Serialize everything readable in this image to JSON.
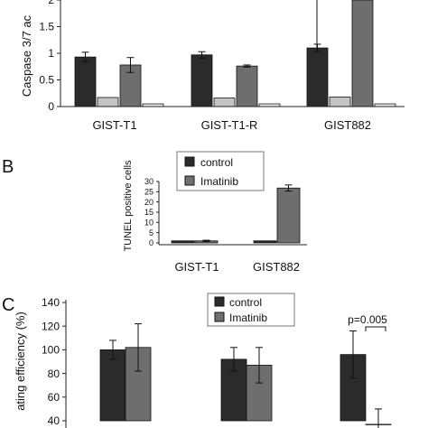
{
  "chart_data": [
    {
      "panel": "",
      "type": "bar",
      "ylabel": "Caspase 3/7 ac",
      "xlabel": "",
      "ylim": [
        0,
        2.25
      ],
      "yticks": [
        "0",
        "0.5",
        "1",
        "1.5",
        "2"
      ],
      "yticks_values": [
        0,
        0.5,
        1,
        1.5,
        2
      ],
      "categories": [
        "GIST-T1",
        "GIST-T1-R",
        "GIST882"
      ],
      "series": [
        {
          "color": "#2b2b2b",
          "values": [
            0.93,
            0.97,
            1.1
          ],
          "errors": [
            0.09,
            0.06,
            0.07
          ]
        },
        {
          "color": "#c4c4c4",
          "values": [
            0.17,
            0.16,
            0.18
          ],
          "errors": [
            0,
            0,
            0
          ]
        },
        {
          "color": "#6e6e6e",
          "values": [
            0.78,
            0.76,
            2.3
          ],
          "errors": [
            0.14,
            0.02,
            0
          ]
        },
        {
          "color": "#efefef",
          "values": [
            0.05,
            0.05,
            0.05
          ],
          "errors": [
            0,
            0,
            0
          ]
        }
      ],
      "grid": false,
      "legend": "none"
    },
    {
      "panel": "B",
      "type": "bar",
      "ylabel": "TUNEL positive cells",
      "xlabel": "",
      "ylim": [
        0,
        30
      ],
      "yticks": [
        "0",
        "5",
        "10",
        "15",
        "20",
        "25",
        "30"
      ],
      "yticks_values": [
        0,
        5,
        10,
        15,
        20,
        25,
        30
      ],
      "categories": [
        "GIST-T1",
        "GIST882"
      ],
      "series": [
        {
          "name": "control",
          "color": "#2b2b2b",
          "values": [
            1.0,
            1.0
          ],
          "errors": [
            0,
            0
          ]
        },
        {
          "name": "Imatinib",
          "color": "#6e6e6e",
          "values": [
            1.0,
            26.8
          ],
          "errors": [
            0.3,
            1.5
          ]
        }
      ],
      "grid": false,
      "legend": "top-left"
    },
    {
      "panel": "C",
      "type": "bar",
      "ylabel": "ating efficiency (%)",
      "xlabel": "",
      "ylim": [
        40,
        140
      ],
      "yticks": [
        "40",
        "60",
        "80",
        "100",
        "120",
        "140"
      ],
      "yticks_values": [
        40,
        60,
        80,
        100,
        120,
        140
      ],
      "categories": [
        "",
        "",
        ""
      ],
      "series": [
        {
          "name": "control",
          "color": "#2b2b2b",
          "values": [
            100,
            92,
            96
          ],
          "errors": [
            8,
            10,
            20
          ]
        },
        {
          "name": "Imatinib",
          "color": "#6e6e6e",
          "values": [
            102,
            87,
            37
          ],
          "errors": [
            20,
            15,
            13
          ]
        }
      ],
      "annotation": "p=0.005",
      "grid": false,
      "legend": "top-right"
    }
  ]
}
